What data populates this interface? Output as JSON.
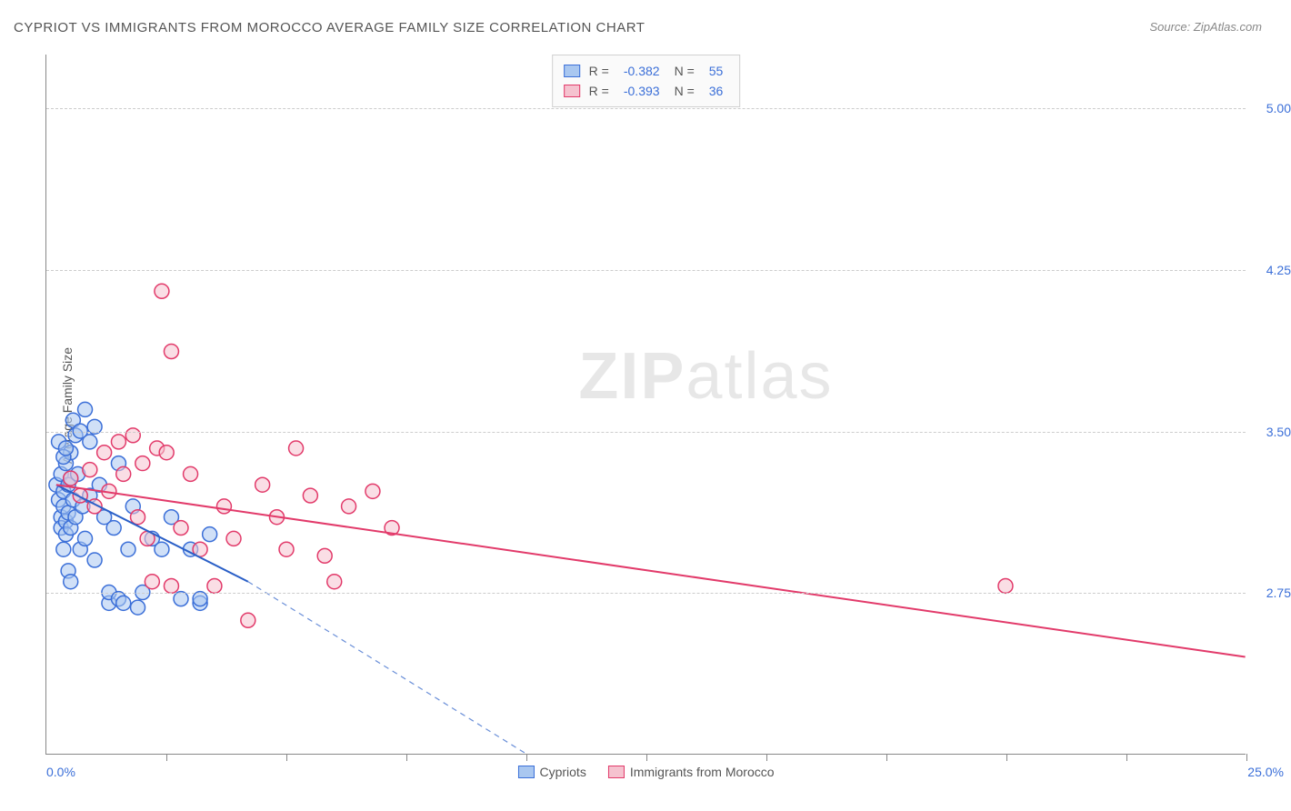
{
  "title": "CYPRIOT VS IMMIGRANTS FROM MOROCCO AVERAGE FAMILY SIZE CORRELATION CHART",
  "source": "Source: ZipAtlas.com",
  "watermark": {
    "part1": "ZIP",
    "part2": "atlas"
  },
  "chart": {
    "type": "scatter",
    "background_color": "#ffffff",
    "grid_color": "#cccccc",
    "axis_color": "#888888",
    "font_family": "Arial",
    "title_fontsize": 15,
    "label_fontsize": 14,
    "ylabel": "Average Family Size",
    "xlim": [
      0,
      25
    ],
    "ylim": [
      2.0,
      5.25
    ],
    "xtick_labels": {
      "min": "0.0%",
      "max": "25.0%"
    },
    "xtick_positions": [
      0,
      2.5,
      5,
      7.5,
      10,
      12.5,
      15,
      17.5,
      20,
      22.5,
      25
    ],
    "ytick_positions": [
      2.75,
      3.5,
      4.25,
      5.0
    ],
    "ytick_labels": [
      "2.75",
      "3.50",
      "4.25",
      "5.00"
    ],
    "marker_radius": 8,
    "marker_stroke_width": 1.5,
    "line_width": 2,
    "series": [
      {
        "name": "Cypriots",
        "fill_color": "#a9c7f0",
        "stroke_color": "#3b6fd8",
        "line_color": "#2a5fc7",
        "line_dash_color": "#6a8fd8",
        "R": "-0.382",
        "N": "55",
        "regression": {
          "x1": 0.2,
          "y1": 3.25,
          "x2": 4.2,
          "y2": 2.8,
          "x_dash_end": 10.0,
          "y_dash_end": 2.0
        },
        "points": [
          [
            0.2,
            3.25
          ],
          [
            0.25,
            3.18
          ],
          [
            0.3,
            3.3
          ],
          [
            0.3,
            3.1
          ],
          [
            0.3,
            3.05
          ],
          [
            0.35,
            3.22
          ],
          [
            0.35,
            3.15
          ],
          [
            0.4,
            3.35
          ],
          [
            0.4,
            3.08
          ],
          [
            0.4,
            3.02
          ],
          [
            0.45,
            3.25
          ],
          [
            0.45,
            3.12
          ],
          [
            0.5,
            3.4
          ],
          [
            0.5,
            3.28
          ],
          [
            0.5,
            3.05
          ],
          [
            0.55,
            3.55
          ],
          [
            0.55,
            3.18
          ],
          [
            0.6,
            3.48
          ],
          [
            0.6,
            3.1
          ],
          [
            0.65,
            3.3
          ],
          [
            0.7,
            3.5
          ],
          [
            0.7,
            2.95
          ],
          [
            0.75,
            3.15
          ],
          [
            0.8,
            3.6
          ],
          [
            0.8,
            3.0
          ],
          [
            0.9,
            3.45
          ],
          [
            0.9,
            3.2
          ],
          [
            1.0,
            3.52
          ],
          [
            1.0,
            2.9
          ],
          [
            1.1,
            3.25
          ],
          [
            1.2,
            3.1
          ],
          [
            1.3,
            2.7
          ],
          [
            1.3,
            2.75
          ],
          [
            1.4,
            3.05
          ],
          [
            1.5,
            3.35
          ],
          [
            1.5,
            2.72
          ],
          [
            1.6,
            2.7
          ],
          [
            1.7,
            2.95
          ],
          [
            1.8,
            3.15
          ],
          [
            1.9,
            2.68
          ],
          [
            2.0,
            2.75
          ],
          [
            2.2,
            3.0
          ],
          [
            2.4,
            2.95
          ],
          [
            2.6,
            3.1
          ],
          [
            2.8,
            2.72
          ],
          [
            3.0,
            2.95
          ],
          [
            3.2,
            2.7
          ],
          [
            3.2,
            2.72
          ],
          [
            3.4,
            3.02
          ],
          [
            0.35,
            2.95
          ],
          [
            0.45,
            2.85
          ],
          [
            0.5,
            2.8
          ],
          [
            0.25,
            3.45
          ],
          [
            0.35,
            3.38
          ],
          [
            0.4,
            3.42
          ]
        ]
      },
      {
        "name": "Immigrants from Morocco",
        "fill_color": "#f5c2cf",
        "stroke_color": "#e23a6a",
        "line_color": "#e23a6a",
        "R": "-0.393",
        "N": "36",
        "regression": {
          "x1": 0.2,
          "y1": 3.25,
          "x2": 25.0,
          "y2": 2.45
        },
        "points": [
          [
            0.5,
            3.28
          ],
          [
            0.7,
            3.2
          ],
          [
            0.9,
            3.32
          ],
          [
            1.0,
            3.15
          ],
          [
            1.2,
            3.4
          ],
          [
            1.3,
            3.22
          ],
          [
            1.5,
            3.45
          ],
          [
            1.6,
            3.3
          ],
          [
            1.8,
            3.48
          ],
          [
            1.9,
            3.1
          ],
          [
            2.0,
            3.35
          ],
          [
            2.1,
            3.0
          ],
          [
            2.2,
            2.8
          ],
          [
            2.3,
            3.42
          ],
          [
            2.4,
            4.15
          ],
          [
            2.5,
            3.4
          ],
          [
            2.6,
            2.78
          ],
          [
            2.6,
            3.87
          ],
          [
            2.8,
            3.05
          ],
          [
            3.0,
            3.3
          ],
          [
            3.2,
            2.95
          ],
          [
            3.5,
            2.78
          ],
          [
            3.7,
            3.15
          ],
          [
            3.9,
            3.0
          ],
          [
            4.2,
            2.62
          ],
          [
            4.5,
            3.25
          ],
          [
            4.8,
            3.1
          ],
          [
            5.0,
            2.95
          ],
          [
            5.2,
            3.42
          ],
          [
            5.5,
            3.2
          ],
          [
            5.8,
            2.92
          ],
          [
            6.0,
            2.8
          ],
          [
            6.3,
            3.15
          ],
          [
            6.8,
            3.22
          ],
          [
            7.2,
            3.05
          ],
          [
            20.0,
            2.78
          ]
        ]
      }
    ],
    "legend_top_labels": {
      "R": "R =",
      "N": "N ="
    },
    "legend_bottom": [
      {
        "label": "Cypriots",
        "fill": "#a9c7f0",
        "stroke": "#3b6fd8"
      },
      {
        "label": "Immigrants from Morocco",
        "fill": "#f5c2cf",
        "stroke": "#e23a6a"
      }
    ]
  }
}
